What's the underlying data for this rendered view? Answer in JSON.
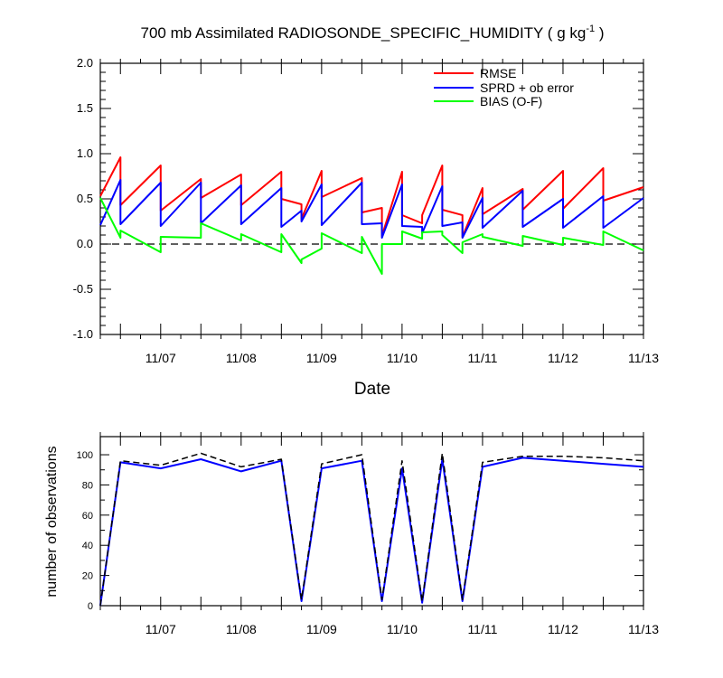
{
  "chart_data": [
    {
      "type": "line",
      "title": "700 mb Assimilated RADIOSONDE_SPECIFIC_HUMIDITY ( g kg",
      "title_units_exponent": "-1",
      "title_close": " )",
      "xlabel": "Date",
      "ylabel": "",
      "ylim": [
        -1.0,
        2.0
      ],
      "y_ticks": [
        "-1.0",
        "-0.5",
        "0.0",
        "0.5",
        "1.0",
        "1.5",
        "2.0"
      ],
      "x_tick_labels": [
        "11/07",
        "11/08",
        "11/09",
        "11/10",
        "11/11",
        "11/12",
        "11/13"
      ],
      "xlim": [
        11.25,
        18.0
      ],
      "zero_line": "dashed",
      "legend_position": "top-right",
      "series": [
        {
          "name": "RMSE",
          "color": "#ff0000",
          "x": [
            11.25,
            11.5,
            11.5,
            12.0,
            12.0,
            12.5,
            12.5,
            13.0,
            13.0,
            13.5,
            13.5,
            13.75,
            13.75,
            14.0,
            14.0,
            14.5,
            14.5,
            14.75,
            14.75,
            15.0,
            15.0,
            15.25,
            15.25,
            15.5,
            15.5,
            15.75,
            15.75,
            16.0,
            16.0,
            16.5,
            16.5,
            17.0,
            17.0,
            17.5,
            17.5,
            18.0
          ],
          "y": [
            0.53,
            0.96,
            0.43,
            0.87,
            0.37,
            0.72,
            0.51,
            0.77,
            0.43,
            0.8,
            0.5,
            0.44,
            0.28,
            0.81,
            0.52,
            0.73,
            0.35,
            0.4,
            0.09,
            0.8,
            0.32,
            0.23,
            0.32,
            0.87,
            0.38,
            0.32,
            0.08,
            0.62,
            0.33,
            0.61,
            0.38,
            0.81,
            0.39,
            0.84,
            0.48,
            0.63
          ]
        },
        {
          "name": "SPRD + ob error",
          "color": "#0000ff",
          "x": [
            11.25,
            11.5,
            11.5,
            12.0,
            12.0,
            12.5,
            12.5,
            13.0,
            13.0,
            13.5,
            13.5,
            13.75,
            13.75,
            14.0,
            14.0,
            14.5,
            14.5,
            14.75,
            14.75,
            15.0,
            15.0,
            15.25,
            15.25,
            15.5,
            15.5,
            15.75,
            15.75,
            16.0,
            16.0,
            16.5,
            16.5,
            17.0,
            17.0,
            17.5,
            17.5,
            18.0
          ],
          "y": [
            0.21,
            0.71,
            0.22,
            0.68,
            0.2,
            0.68,
            0.23,
            0.65,
            0.22,
            0.62,
            0.19,
            0.37,
            0.25,
            0.66,
            0.21,
            0.68,
            0.22,
            0.23,
            0.07,
            0.66,
            0.2,
            0.19,
            0.12,
            0.64,
            0.2,
            0.24,
            0.07,
            0.51,
            0.18,
            0.59,
            0.19,
            0.5,
            0.18,
            0.53,
            0.18,
            0.51
          ]
        },
        {
          "name": "BIAS (O-F)",
          "color": "#00ff00",
          "x": [
            11.25,
            11.5,
            11.5,
            12.0,
            12.0,
            12.5,
            12.5,
            13.0,
            13.0,
            13.5,
            13.5,
            13.75,
            13.75,
            14.0,
            14.0,
            14.5,
            14.5,
            14.75,
            14.75,
            15.0,
            15.0,
            15.25,
            15.25,
            15.5,
            15.5,
            15.75,
            15.75,
            16.0,
            16.0,
            16.5,
            16.5,
            17.0,
            17.0,
            17.5,
            17.5,
            18.0
          ],
          "y": [
            0.51,
            0.07,
            0.15,
            -0.09,
            0.08,
            0.07,
            0.23,
            0.04,
            0.11,
            -0.09,
            0.11,
            -0.21,
            -0.17,
            -0.05,
            0.12,
            -0.1,
            0.08,
            -0.33,
            0.0,
            0.0,
            0.14,
            0.06,
            0.13,
            0.14,
            0.1,
            -0.1,
            0.02,
            0.11,
            0.08,
            -0.02,
            0.09,
            -0.01,
            0.07,
            -0.01,
            0.14,
            -0.07
          ]
        }
      ]
    },
    {
      "type": "line",
      "title": "",
      "xlabel": "",
      "ylabel": "number of observations",
      "ylim": [
        0,
        112
      ],
      "y_ticks": [
        "0",
        "20",
        "40",
        "60",
        "80",
        "100"
      ],
      "x_tick_labels": [
        "11/07",
        "11/08",
        "11/09",
        "11/10",
        "11/11",
        "11/12",
        "11/13"
      ],
      "xlim": [
        11.25,
        18.0
      ],
      "series": [
        {
          "color": "#0000ff",
          "style": "solid",
          "x": [
            11.25,
            11.5,
            12.0,
            12.5,
            13.0,
            13.5,
            13.75,
            14.0,
            14.5,
            14.75,
            15.0,
            15.25,
            15.5,
            15.75,
            16.0,
            16.5,
            17.0,
            17.5,
            18.0
          ],
          "y": [
            0,
            95,
            91,
            97,
            89,
            96,
            3,
            91,
            96,
            3,
            91,
            2,
            97,
            3,
            92,
            98,
            96,
            94,
            92
          ]
        },
        {
          "color": "#000000",
          "style": "dashed",
          "x": [
            11.25,
            11.5,
            12.0,
            12.5,
            13.0,
            13.5,
            13.75,
            14.0,
            14.5,
            14.75,
            15.0,
            15.25,
            15.5,
            15.75,
            16.0,
            16.5,
            17.0,
            17.5,
            18.0
          ],
          "y": [
            0,
            96,
            93,
            101,
            92,
            97,
            4,
            94,
            100,
            4,
            96,
            3,
            101,
            4,
            95,
            99,
            99,
            98,
            96
          ]
        }
      ]
    }
  ]
}
